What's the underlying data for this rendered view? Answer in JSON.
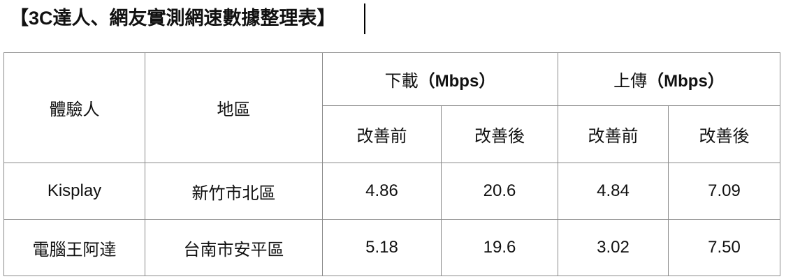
{
  "title": "【3C達人、網友實測網速數據整理表】",
  "table": {
    "headers": {
      "person": "體驗人",
      "region": "地區",
      "download": {
        "label": "下載",
        "unit": "（Mbps）"
      },
      "upload": {
        "label": "上傳",
        "unit": "（Mbps）"
      },
      "before": "改善前",
      "after": "改善後"
    },
    "rows": [
      {
        "person": "Kisplay",
        "region": "新竹市北區",
        "dl_before": "4.86",
        "dl_after": "20.6",
        "ul_before": "4.84",
        "ul_after": "7.09"
      },
      {
        "person": "電腦王阿達",
        "region": "台南市安平區",
        "dl_before": "5.18",
        "dl_after": "19.6",
        "ul_before": "3.02",
        "ul_after": "7.50"
      }
    ]
  }
}
